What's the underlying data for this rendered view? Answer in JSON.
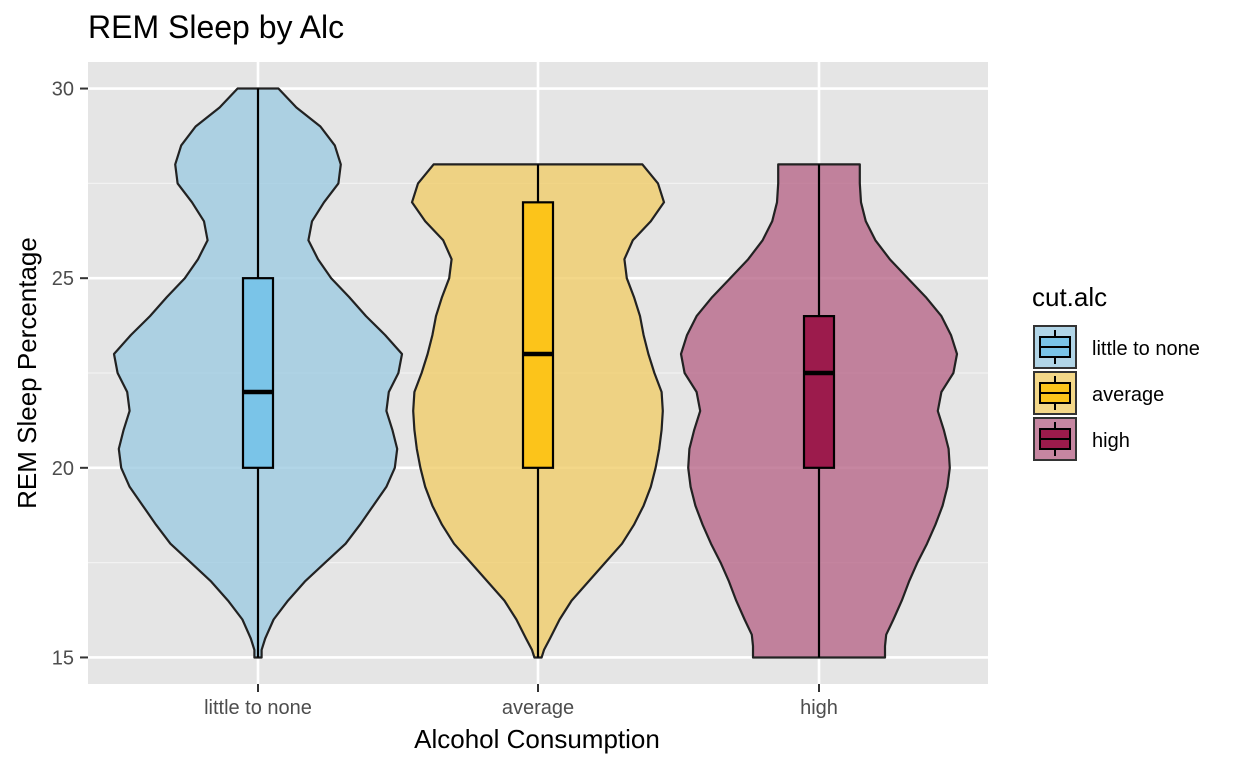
{
  "chart_data": {
    "type": "violin",
    "title": "REM Sleep by Alc",
    "xlabel": "Alcohol Consumption",
    "ylabel": "REM Sleep Percentage",
    "ylim": [
      14.3,
      30.7
    ],
    "yticks": [
      15,
      20,
      25,
      30
    ],
    "y_minor_gridlines": [
      17.5,
      22.5,
      27.5
    ],
    "grid": true,
    "legend": {
      "title": "cut.alc",
      "placement": "right",
      "entries": [
        "little to none",
        "average",
        "high"
      ]
    },
    "categories": [
      "little to none",
      "average",
      "high"
    ],
    "series": [
      {
        "name": "little to none",
        "violin_color": "#9ecae1",
        "box_color": "#7ac4e8",
        "box": {
          "min": 15,
          "q1": 20,
          "median": 22,
          "q3": 25,
          "max": 30
        },
        "density_profile": [
          [
            15.0,
            0.03
          ],
          [
            15.2,
            0.03
          ],
          [
            15.5,
            0.06
          ],
          [
            16.0,
            0.13
          ],
          [
            16.5,
            0.25
          ],
          [
            17.0,
            0.39
          ],
          [
            17.5,
            0.56
          ],
          [
            18.0,
            0.73
          ],
          [
            18.5,
            0.85
          ],
          [
            19.0,
            0.96
          ],
          [
            19.5,
            1.07
          ],
          [
            20.0,
            1.14
          ],
          [
            20.5,
            1.16
          ],
          [
            21.0,
            1.12
          ],
          [
            21.5,
            1.07
          ],
          [
            22.0,
            1.09
          ],
          [
            22.5,
            1.17
          ],
          [
            23.0,
            1.2
          ],
          [
            23.5,
            1.06
          ],
          [
            24.0,
            0.9
          ],
          [
            24.5,
            0.76
          ],
          [
            25.0,
            0.61
          ],
          [
            25.5,
            0.5
          ],
          [
            26.0,
            0.42
          ],
          [
            26.5,
            0.45
          ],
          [
            27.0,
            0.55
          ],
          [
            27.5,
            0.67
          ],
          [
            28.0,
            0.69
          ],
          [
            28.5,
            0.64
          ],
          [
            29.0,
            0.52
          ],
          [
            29.5,
            0.32
          ],
          [
            30.0,
            0.17
          ]
        ]
      },
      {
        "name": "average",
        "violin_color": "#f0cd6a",
        "box_color": "#fcc41a",
        "box": {
          "min": 15,
          "q1": 20,
          "median": 23,
          "q3": 27,
          "max": 28
        },
        "density_profile": [
          [
            15.0,
            0.03
          ],
          [
            15.2,
            0.05
          ],
          [
            15.5,
            0.1
          ],
          [
            16.0,
            0.18
          ],
          [
            16.5,
            0.28
          ],
          [
            17.0,
            0.42
          ],
          [
            17.5,
            0.56
          ],
          [
            18.0,
            0.7
          ],
          [
            18.5,
            0.8
          ],
          [
            19.0,
            0.88
          ],
          [
            19.5,
            0.94
          ],
          [
            20.0,
            0.98
          ],
          [
            20.5,
            1.01
          ],
          [
            21.0,
            1.03
          ],
          [
            21.5,
            1.04
          ],
          [
            22.0,
            1.03
          ],
          [
            22.5,
            0.97
          ],
          [
            23.0,
            0.92
          ],
          [
            23.5,
            0.88
          ],
          [
            24.0,
            0.85
          ],
          [
            24.5,
            0.8
          ],
          [
            25.0,
            0.74
          ],
          [
            25.5,
            0.72
          ],
          [
            26.0,
            0.79
          ],
          [
            26.5,
            0.94
          ],
          [
            27.0,
            1.05
          ],
          [
            27.5,
            1.0
          ],
          [
            28.0,
            0.87
          ]
        ]
      },
      {
        "name": "high",
        "violin_color": "#b8688a",
        "box_color": "#9c1b4c",
        "box": {
          "min": 15,
          "q1": 20,
          "median": 22.5,
          "q3": 24,
          "max": 28
        },
        "density_profile": [
          [
            15.0,
            0.55
          ],
          [
            15.3,
            0.55
          ],
          [
            15.6,
            0.56
          ],
          [
            16.0,
            0.62
          ],
          [
            16.5,
            0.69
          ],
          [
            17.0,
            0.75
          ],
          [
            17.5,
            0.82
          ],
          [
            18.0,
            0.9
          ],
          [
            18.5,
            0.97
          ],
          [
            19.0,
            1.03
          ],
          [
            19.5,
            1.07
          ],
          [
            20.0,
            1.09
          ],
          [
            20.5,
            1.08
          ],
          [
            21.0,
            1.04
          ],
          [
            21.5,
            0.99
          ],
          [
            22.0,
            1.02
          ],
          [
            22.5,
            1.12
          ],
          [
            23.0,
            1.15
          ],
          [
            23.5,
            1.1
          ],
          [
            24.0,
            1.02
          ],
          [
            24.5,
            0.89
          ],
          [
            25.0,
            0.74
          ],
          [
            25.5,
            0.59
          ],
          [
            26.0,
            0.47
          ],
          [
            26.5,
            0.39
          ],
          [
            27.0,
            0.35
          ],
          [
            27.5,
            0.34
          ],
          [
            28.0,
            0.34
          ]
        ]
      }
    ]
  }
}
